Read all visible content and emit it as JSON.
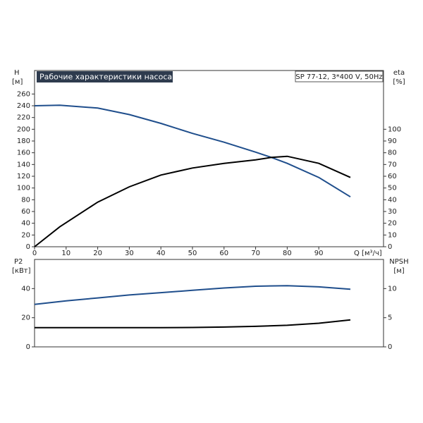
{
  "chart_data": [
    {
      "type": "line",
      "title": "Рабочие характеристики насоса",
      "subtitle": "SP 77-12, 3*400 V, 50Hz",
      "ylabel": "H",
      "yunit": "[м]",
      "y2label": "eta",
      "y2unit": "[%]",
      "xlabel": "Q [м³/ч]",
      "x": [
        0,
        8,
        20,
        30,
        40,
        50,
        60,
        70,
        75,
        80,
        90,
        100
      ],
      "xlim": [
        0,
        110.5
      ],
      "xticks": [
        0,
        10,
        20,
        30,
        40,
        50,
        60,
        70,
        80,
        90
      ],
      "ylim": [
        0,
        300
      ],
      "yticks": [
        0,
        20,
        40,
        60,
        80,
        100,
        120,
        140,
        160,
        180,
        200,
        220,
        240,
        260
      ],
      "y2lim": [
        0,
        150
      ],
      "y2ticks": [
        0,
        10,
        20,
        30,
        40,
        50,
        60,
        70,
        80,
        90,
        100
      ],
      "series": [
        {
          "color": "#1f4e8c",
          "values": [
            240,
            241,
            236,
            225,
            210,
            193,
            178,
            161,
            152,
            142,
            118,
            85
          ]
        },
        {
          "color": "#000000",
          "axis": "y2",
          "values": [
            0,
            17,
            38,
            51,
            61,
            67,
            71,
            74,
            76,
            77,
            71,
            59
          ]
        }
      ]
    },
    {
      "type": "line",
      "ylabel": "P2",
      "yunit": "[кВт]",
      "y2label": "NPSH",
      "y2unit": "[м]",
      "x": [
        0,
        10,
        20,
        30,
        40,
        50,
        60,
        70,
        80,
        90,
        100
      ],
      "xlim": [
        0,
        110.5
      ],
      "ylim": [
        0,
        60
      ],
      "yticks": [
        0,
        20,
        40
      ],
      "y2lim": [
        0,
        15
      ],
      "y2ticks": [
        0,
        5,
        10
      ],
      "series": [
        {
          "color": "#000000",
          "values": [
            13.2,
            13.2,
            13.2,
            13.2,
            13.2,
            13.3,
            13.6,
            14.1,
            14.8,
            16.2,
            18.5
          ]
        },
        {
          "color": "#1f4e8c",
          "axis": "y2",
          "values": [
            7.3,
            7.9,
            8.4,
            8.9,
            9.3,
            9.7,
            10.1,
            10.4,
            10.5,
            10.3,
            9.9
          ]
        }
      ]
    }
  ]
}
